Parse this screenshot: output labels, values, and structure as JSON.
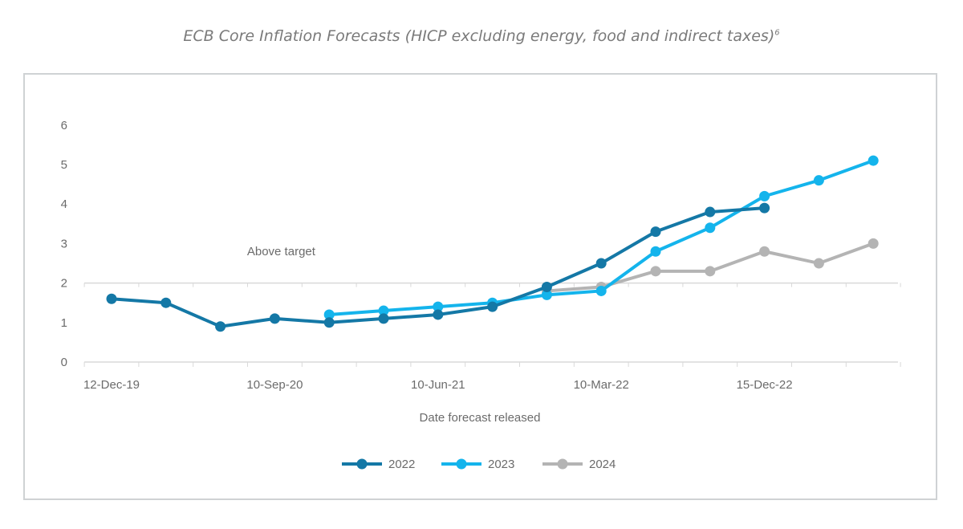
{
  "chart_title": "ECB Core Inflation Forecasts (HICP excluding energy, food and indirect taxes)",
  "chart_title_footnote": "6",
  "chart_data": {
    "type": "line",
    "xlabel": "Date forecast released",
    "ylabel": "",
    "ylim": [
      0,
      6
    ],
    "y_ticks": [
      0,
      1,
      2,
      3,
      4,
      5,
      6
    ],
    "x_categories_count": 15,
    "x_tick_labels": [
      {
        "index": 0,
        "label": "12-Dec-19"
      },
      {
        "index": 3,
        "label": "10-Sep-20"
      },
      {
        "index": 6,
        "label": "10-Jun-21"
      },
      {
        "index": 9,
        "label": "10-Mar-22"
      },
      {
        "index": 12,
        "label": "15-Dec-22"
      }
    ],
    "annotation": {
      "text": "Above target",
      "x_index": 3,
      "y": 2.8
    },
    "grid": false,
    "legend_position": "bottom",
    "series": [
      {
        "name": "2022",
        "color": "#1478a6",
        "start_index": 0,
        "values": [
          1.6,
          1.5,
          0.9,
          1.1,
          1.0,
          1.1,
          1.2,
          1.4,
          1.9,
          2.5,
          3.3,
          3.8,
          3.9
        ]
      },
      {
        "name": "2023",
        "color": "#14b4ec",
        "start_index": 4,
        "values": [
          1.2,
          1.3,
          1.4,
          1.5,
          1.7,
          1.8,
          2.8,
          3.4,
          4.2,
          4.6,
          5.1
        ]
      },
      {
        "name": "2024",
        "color": "#b4b4b4",
        "start_index": 8,
        "values": [
          1.8,
          1.9,
          2.3,
          2.3,
          2.8,
          2.5,
          3.0
        ]
      }
    ]
  }
}
